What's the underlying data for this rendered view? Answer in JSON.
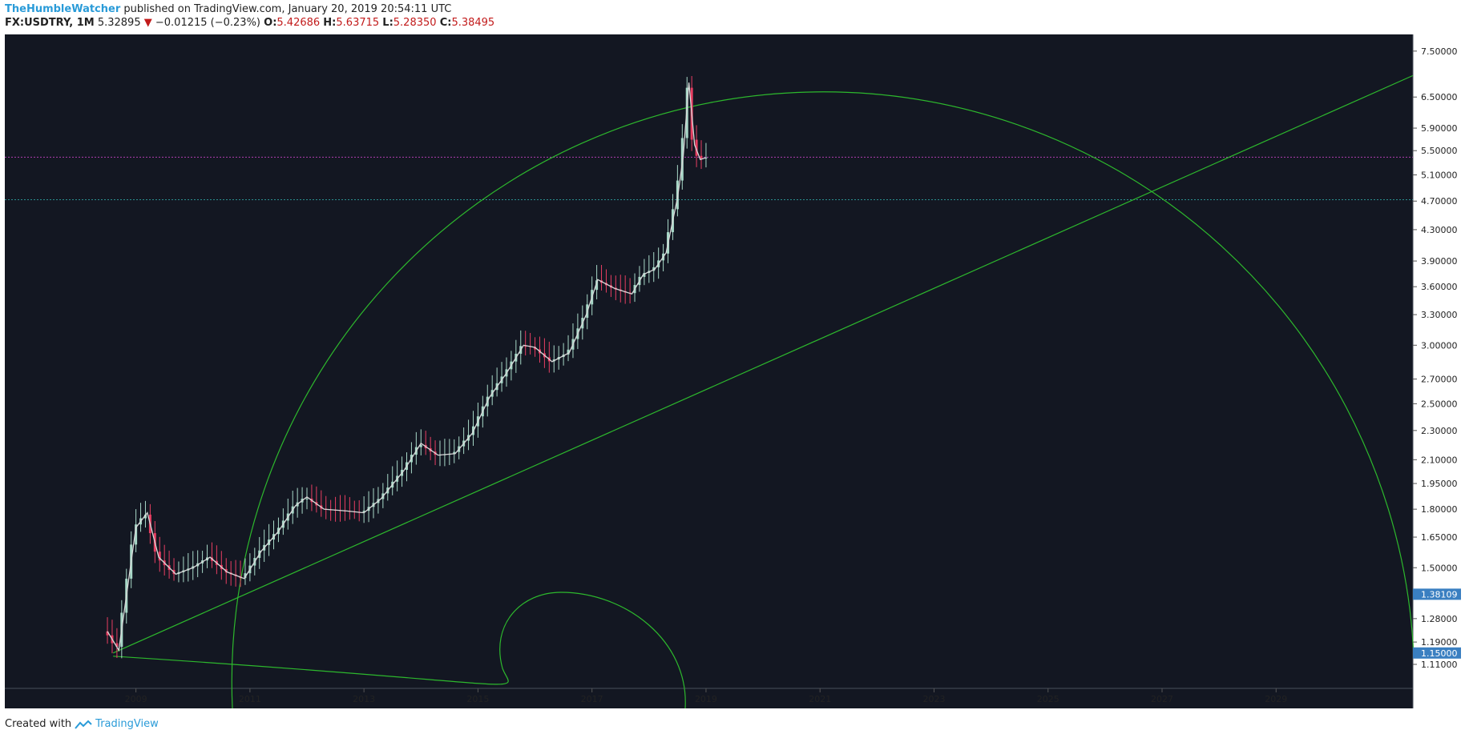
{
  "header": {
    "author": "TheHumbleWatcher",
    "published_text": "published on TradingView.com, January 20, 2019 20:54:11 UTC",
    "symbol": "FX:USDTRY, 1M",
    "last": "5.32895",
    "down_marker": "▼",
    "change": "−0.01215 (−0.23%)",
    "o_label": "O:",
    "o": "5.42686",
    "h_label": "H:",
    "h": "5.63715",
    "l_label": "L:",
    "l": "5.28350",
    "c_label": "C:",
    "c": "5.38495"
  },
  "footer": {
    "created_with": "Created with",
    "brand": "TradingView"
  },
  "colors": {
    "background": "#131722",
    "up": "#a8d8c8",
    "down": "#e83e62",
    "arc": "#2db82d",
    "zigzag": "#d8d8d8",
    "magenta_line": "#b03cb0",
    "teal_line": "#2a8f8f",
    "label_bg": "#3a7fc1"
  },
  "chart_data": {
    "type": "candlestick",
    "interval": "1M",
    "x_axis": {
      "range": [
        2006.7,
        2031.4
      ],
      "tick_labels": [
        "2009",
        "2011",
        "2013",
        "2015",
        "2017",
        "2019",
        "2021",
        "2023",
        "2025",
        "2027",
        "2029"
      ]
    },
    "y_axis": {
      "scale": "log",
      "range": [
        1.03,
        7.9
      ],
      "tick_labels": [
        "7.50000",
        "6.50000",
        "5.90000",
        "5.50000",
        "5.10000",
        "4.70000",
        "4.30000",
        "3.90000",
        "3.60000",
        "3.30000",
        "3.00000",
        "2.70000",
        "2.50000",
        "2.30000",
        "2.10000",
        "1.95000",
        "1.80000",
        "1.65000",
        "1.50000",
        "1.28000",
        "1.19000",
        "1.11000"
      ]
    },
    "price_labels": [
      "1.38109",
      "1.15000"
    ],
    "horizontal_levels": [
      {
        "style": "magenta-dashed",
        "value": 5.39
      },
      {
        "style": "teal-dashed",
        "value": 4.72
      }
    ],
    "trend_line": [
      [
        2008.6,
        1.15
      ],
      [
        2031.4,
        6.95
      ]
    ],
    "price_path": [
      [
        2008.5,
        1.23
      ],
      [
        2008.7,
        1.16
      ],
      [
        2009.0,
        1.7
      ],
      [
        2009.2,
        1.78
      ],
      [
        2009.4,
        1.55
      ],
      [
        2009.7,
        1.47
      ],
      [
        2010.0,
        1.5
      ],
      [
        2010.3,
        1.55
      ],
      [
        2010.6,
        1.48
      ],
      [
        2010.9,
        1.45
      ],
      [
        2011.2,
        1.58
      ],
      [
        2011.5,
        1.68
      ],
      [
        2011.8,
        1.82
      ],
      [
        2012.0,
        1.87
      ],
      [
        2012.3,
        1.8
      ],
      [
        2012.7,
        1.79
      ],
      [
        2013.0,
        1.78
      ],
      [
        2013.3,
        1.86
      ],
      [
        2013.7,
        2.03
      ],
      [
        2014.0,
        2.21
      ],
      [
        2014.3,
        2.13
      ],
      [
        2014.6,
        2.14
      ],
      [
        2014.9,
        2.28
      ],
      [
        2015.2,
        2.55
      ],
      [
        2015.5,
        2.75
      ],
      [
        2015.8,
        3.0
      ],
      [
        2016.0,
        2.98
      ],
      [
        2016.3,
        2.85
      ],
      [
        2016.6,
        2.93
      ],
      [
        2016.9,
        3.3
      ],
      [
        2017.1,
        3.68
      ],
      [
        2017.4,
        3.58
      ],
      [
        2017.7,
        3.52
      ],
      [
        2017.9,
        3.74
      ],
      [
        2018.1,
        3.8
      ],
      [
        2018.3,
        4.0
      ],
      [
        2018.5,
        4.75
      ],
      [
        2018.6,
        5.4
      ],
      [
        2018.7,
        6.8
      ],
      [
        2018.8,
        5.6
      ],
      [
        2018.9,
        5.35
      ],
      [
        2019.0,
        5.38
      ]
    ]
  }
}
